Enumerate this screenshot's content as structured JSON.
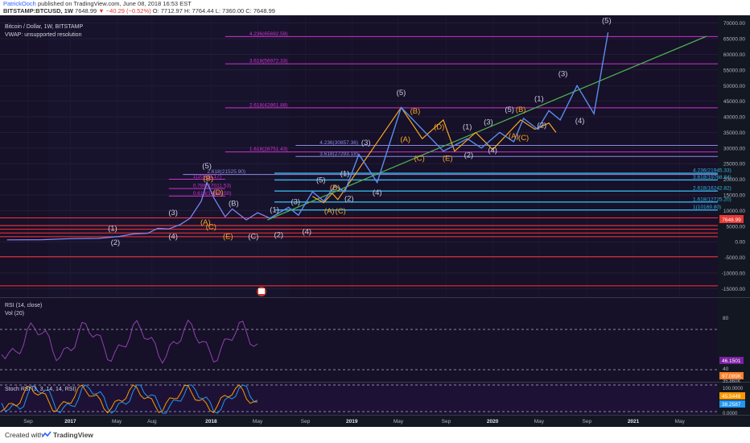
{
  "header": {
    "author": "PatrickOoch",
    "published_text": "published on TradingView.com, June 08, 2018 16:53 EST",
    "symbol": "BITSTAMP:BTCUSD, 1W",
    "last": "7648.99",
    "change": "▼ −40.29 (−0.52%)",
    "ohlc": "O: 7712.97  H: 7764.44  L: 7360.00  C: 7648.99"
  },
  "chart": {
    "title": "Bitcoin / Dollar, 1W, BITSTAMP",
    "vwap_note": "VWAP: unsupported resolution",
    "rsi_label": "RSI (14, close)",
    "vol_label": "Vol (20)",
    "stoch_label": "Stoch RSI (3, 3, 14, 14, RSI)"
  },
  "chart_data": {
    "type": "line",
    "price_axis": {
      "ylim": [
        -17500,
        72500
      ],
      "ticks": [
        70000,
        65000,
        60000,
        55000,
        50000,
        45000,
        40000,
        35000,
        30000,
        25000,
        20000,
        15000,
        10000,
        5000,
        0,
        -5000,
        -10000,
        -15000
      ]
    },
    "time_axis": {
      "labels": [
        "Sep",
        "2017",
        "May",
        "Aug",
        "2018",
        "May",
        "Sep",
        "2019",
        "May",
        "Sep",
        "2020",
        "May",
        "Sep",
        "2021",
        "May",
        "Sep"
      ]
    },
    "last_price_label": "7648.99",
    "btc_price": [
      [
        2016.55,
        600
      ],
      [
        2016.8,
        650
      ],
      [
        2017.0,
        990
      ],
      [
        2017.2,
        1100
      ],
      [
        2017.35,
        1700
      ],
      [
        2017.45,
        2500
      ],
      [
        2017.55,
        2700
      ],
      [
        2017.62,
        4300
      ],
      [
        2017.7,
        4100
      ],
      [
        2017.78,
        5500
      ],
      [
        2017.85,
        7500
      ],
      [
        2017.93,
        13000
      ],
      [
        2017.97,
        19000
      ],
      [
        2018.02,
        14000
      ],
      [
        2018.1,
        8000
      ],
      [
        2018.15,
        10500
      ],
      [
        2018.25,
        7000
      ],
      [
        2018.33,
        9300
      ],
      [
        2018.42,
        7500
      ]
    ],
    "projection_blue": [
      [
        2018.42,
        7600
      ],
      [
        2018.55,
        11000
      ],
      [
        2018.62,
        8500
      ],
      [
        2018.72,
        16000
      ],
      [
        2018.8,
        13000
      ],
      [
        2018.88,
        18000
      ],
      [
        2018.95,
        16000
      ],
      [
        2019.05,
        28000
      ],
      [
        2019.18,
        19000
      ],
      [
        2019.35,
        43000
      ],
      [
        2019.65,
        29000
      ],
      [
        2019.82,
        33000
      ],
      [
        2019.92,
        30000
      ],
      [
        2020.05,
        35000
      ],
      [
        2020.15,
        32000
      ],
      [
        2020.22,
        39500
      ],
      [
        2020.32,
        36000
      ],
      [
        2020.4,
        42000
      ],
      [
        2020.48,
        39000
      ],
      [
        2020.6,
        50000
      ],
      [
        2020.72,
        41000
      ],
      [
        2020.82,
        67000
      ]
    ],
    "projection_orange": [
      [
        2018.72,
        14500
      ],
      [
        2018.8,
        12500
      ],
      [
        2018.86,
        15500
      ],
      [
        2018.9,
        13500
      ],
      [
        2019.35,
        43000
      ],
      [
        2019.5,
        33000
      ],
      [
        2019.65,
        39000
      ],
      [
        2019.73,
        29000
      ],
      [
        2019.88,
        35000
      ],
      [
        2020.0,
        29500
      ],
      [
        2020.2,
        39000
      ],
      [
        2020.3,
        36000
      ],
      [
        2020.4,
        38000
      ],
      [
        2020.45,
        35000
      ]
    ],
    "trendline": [
      [
        2018.4,
        7000
      ],
      [
        2021.52,
        65800
      ]
    ],
    "wave_labels": [
      {
        "t": 2017.3,
        "v": 3500,
        "text": "(1)",
        "c": "w"
      },
      {
        "t": 2017.32,
        "v": -1000,
        "text": "(2)",
        "c": "w"
      },
      {
        "t": 2017.73,
        "v": 8500,
        "text": "(3)",
        "c": "w"
      },
      {
        "t": 2017.73,
        "v": 1000,
        "text": "(4)",
        "c": "w"
      },
      {
        "t": 2017.97,
        "v": 23500,
        "text": "(5)",
        "c": "w"
      },
      {
        "t": 2017.98,
        "v": 19500,
        "text": "(B)",
        "c": "o"
      },
      {
        "t": 2017.96,
        "v": 5500,
        "text": "(A)",
        "c": "o"
      },
      {
        "t": 2018.05,
        "v": 15000,
        "text": "(D)",
        "c": "o"
      },
      {
        "t": 2018.0,
        "v": 4000,
        "text": "(C)",
        "c": "o"
      },
      {
        "t": 2018.16,
        "v": 11500,
        "text": "(B)",
        "c": "w"
      },
      {
        "t": 2018.12,
        "v": 1000,
        "text": "(E)",
        "c": "o"
      },
      {
        "t": 2018.3,
        "v": 1000,
        "text": "(C)",
        "c": "w"
      },
      {
        "t": 2018.45,
        "v": 9500,
        "text": "(1)",
        "c": "w"
      },
      {
        "t": 2018.48,
        "v": 1500,
        "text": "(2)",
        "c": "w"
      },
      {
        "t": 2018.6,
        "v": 12000,
        "text": "(3)",
        "c": "w"
      },
      {
        "t": 2018.68,
        "v": 2500,
        "text": "(4)",
        "c": "w"
      },
      {
        "t": 2018.78,
        "v": 19000,
        "text": "(5)",
        "c": "w"
      },
      {
        "t": 2018.88,
        "v": 16500,
        "text": "(B)",
        "c": "o"
      },
      {
        "t": 2018.84,
        "v": 9000,
        "text": "(A)",
        "c": "o"
      },
      {
        "t": 2018.92,
        "v": 9000,
        "text": "(C)",
        "c": "o"
      },
      {
        "t": 2018.95,
        "v": 21000,
        "text": "(1)",
        "c": "w"
      },
      {
        "t": 2018.98,
        "v": 13000,
        "text": "(2)",
        "c": "w"
      },
      {
        "t": 2019.1,
        "v": 31000,
        "text": "(3)",
        "c": "w"
      },
      {
        "t": 2019.18,
        "v": 15000,
        "text": "(4)",
        "c": "w"
      },
      {
        "t": 2019.35,
        "v": 47000,
        "text": "(5)",
        "c": "w"
      },
      {
        "t": 2019.45,
        "v": 41000,
        "text": "(B)",
        "c": "o"
      },
      {
        "t": 2019.38,
        "v": 32000,
        "text": "(A)",
        "c": "o"
      },
      {
        "t": 2019.48,
        "v": 26000,
        "text": "(C)",
        "c": "o"
      },
      {
        "t": 2019.62,
        "v": 36000,
        "text": "(D)",
        "c": "o"
      },
      {
        "t": 2019.68,
        "v": 26000,
        "text": "(E)",
        "c": "o"
      },
      {
        "t": 2019.82,
        "v": 36000,
        "text": "(1)",
        "c": "w"
      },
      {
        "t": 2019.83,
        "v": 27000,
        "text": "(2)",
        "c": "w"
      },
      {
        "t": 2019.97,
        "v": 37500,
        "text": "(3)",
        "c": "w"
      },
      {
        "t": 2020.0,
        "v": 28500,
        "text": "(4)",
        "c": "w"
      },
      {
        "t": 2020.12,
        "v": 41500,
        "text": "(5)",
        "c": "w"
      },
      {
        "t": 2020.2,
        "v": 41500,
        "text": "(B)",
        "c": "o"
      },
      {
        "t": 2020.15,
        "v": 33000,
        "text": "(A)",
        "c": "o"
      },
      {
        "t": 2020.22,
        "v": 32500,
        "text": "(C)",
        "c": "o"
      },
      {
        "t": 2020.33,
        "v": 45000,
        "text": "(1)",
        "c": "w"
      },
      {
        "t": 2020.35,
        "v": 36500,
        "text": "(2)",
        "c": "w"
      },
      {
        "t": 2020.5,
        "v": 53000,
        "text": "(3)",
        "c": "w"
      },
      {
        "t": 2020.62,
        "v": 38000,
        "text": "(4)",
        "c": "w"
      },
      {
        "t": 2020.81,
        "v": 70000,
        "text": "(5)",
        "c": "w"
      }
    ],
    "fib_levels": [
      {
        "v": 65692.59,
        "t1": 2018.1,
        "t2": 2021.6,
        "color": "#cc33cc",
        "label": "4.236(65692.59)"
      },
      {
        "v": 56972.33,
        "t1": 2018.1,
        "t2": 2021.6,
        "color": "#cc33cc",
        "label": "3.618(56972.33)"
      },
      {
        "v": 42861.88,
        "t1": 2018.1,
        "t2": 2021.6,
        "color": "#cc33cc",
        "label": "2.618(42861.88)"
      },
      {
        "v": 30857.36,
        "t1": 2018.6,
        "t2": 2021.6,
        "color": "#8a8ae0",
        "label": "4.236(30857.36)"
      },
      {
        "v": 28751.43,
        "t1": 2018.1,
        "t2": 2021.6,
        "color": "#cc33cc",
        "label": "1.618(28751.43)"
      },
      {
        "v": 27293.18,
        "t1": 2018.6,
        "t2": 2021.6,
        "color": "#8a8ae0",
        "label": "3.618(27293.18)"
      },
      {
        "v": 21525.9,
        "t1": 2017.8,
        "t2": 2021.6,
        "color": "#8a8ae0",
        "label": "2.618(21525.90)"
      },
      {
        "v": 21945.33,
        "t1": 2018.45,
        "t2": 2021.6,
        "color": "#33b5e5",
        "label": "4.236(21945.33)"
      },
      {
        "v": 19768.84,
        "t1": 2018.45,
        "t2": 2021.6,
        "color": "#33b5e5",
        "label": "3.618(19768.84)"
      },
      {
        "v": 20031.17,
        "t1": 2017.7,
        "t2": 2018.1,
        "color": "#cc33cc",
        "label": "1(20031.17)"
      },
      {
        "v": 17011.53,
        "t1": 2017.7,
        "t2": 2018.1,
        "color": "#cc33cc",
        "label": "0.786(17011.53)"
      },
      {
        "v": 16242.82,
        "t1": 2018.45,
        "t2": 2021.6,
        "color": "#33b5e5",
        "label": "2.618(16242.82)"
      },
      {
        "v": 14645.5,
        "t1": 2017.7,
        "t2": 2018.1,
        "color": "#cc33cc",
        "label": "0.618(14645.50)"
      },
      {
        "v": 12725.2,
        "t1": 2018.45,
        "t2": 2021.6,
        "color": "#33b5e5",
        "label": "1.618(12725.20)"
      },
      {
        "v": 10169.8,
        "t1": 2018.45,
        "t2": 2021.6,
        "color": "#33b5e5",
        "label": "1(10169.80)"
      },
      {
        "v": 7648.99,
        "t1": 2016.5,
        "t2": 2021.6,
        "color": "#ff3333",
        "label": ""
      },
      {
        "v": 5200,
        "t1": 2016.5,
        "t2": 2021.6,
        "color": "#ff3333",
        "label": ""
      },
      {
        "v": 4000,
        "t1": 2016.5,
        "t2": 2021.6,
        "color": "#ff3333",
        "label": ""
      },
      {
        "v": 2800,
        "t1": 2016.5,
        "t2": 2021.6,
        "color": "#ff3333",
        "label": ""
      },
      {
        "v": 1600,
        "t1": 2016.5,
        "t2": 2021.6,
        "color": "#ff3333",
        "label": ""
      },
      {
        "v": -4800,
        "t1": 2016.5,
        "t2": 2021.6,
        "color": "#ff3333",
        "label": ""
      },
      {
        "v": -14100,
        "t1": 2016.5,
        "t2": 2021.6,
        "color": "#ff3333",
        "label": ""
      }
    ],
    "rsi_axis_ticks": [
      80,
      40
    ],
    "rsi_value": "46.1501",
    "vol_value": "97.089K",
    "vol_axis_tick": "35.860K",
    "stoch_axis_ticks": [
      "100.0000",
      "0.0000"
    ],
    "stoch_k": "45.5448",
    "stoch_d": "38.2587"
  },
  "footer": {
    "created_with": "Created with",
    "brand": "TradingView"
  }
}
